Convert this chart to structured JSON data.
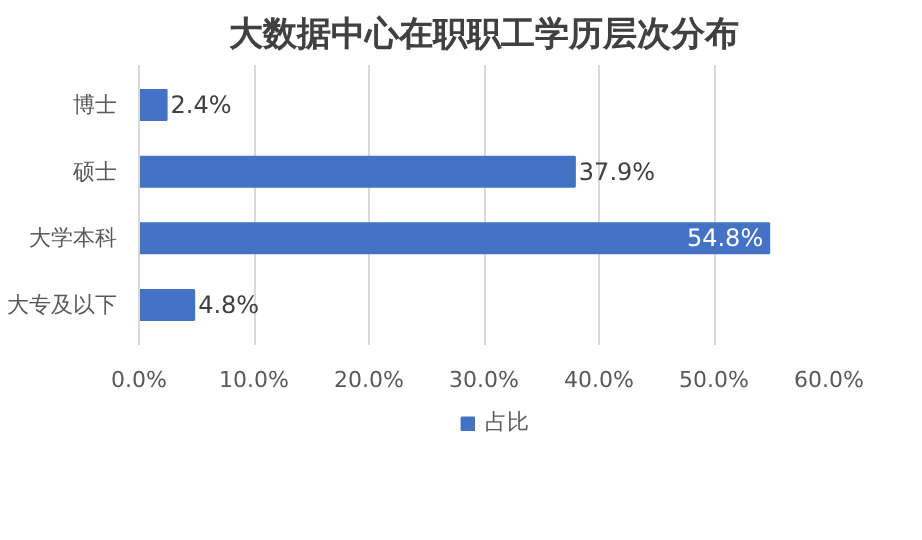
{
  "chart_data": {
    "type": "bar",
    "orientation": "horizontal",
    "title": "大数据中心在职职工学历层次分布",
    "categories": [
      "博士",
      "硕士",
      "大学本科",
      "大专及以下"
    ],
    "series": [
      {
        "name": "占比",
        "color": "#4472c4",
        "values": [
          2.4,
          37.9,
          54.8,
          4.8
        ]
      }
    ],
    "value_labels": [
      "2.4%",
      "37.9%",
      "54.8%",
      "4.8%"
    ],
    "xlim": [
      0,
      60
    ],
    "xticks": [
      {
        "value": 0,
        "label": "0.0%"
      },
      {
        "value": 10,
        "label": "10.0%"
      },
      {
        "value": 20,
        "label": "20.0%"
      },
      {
        "value": 30,
        "label": "30.0%"
      },
      {
        "value": 40,
        "label": "40.0%"
      },
      {
        "value": 50,
        "label": "50.0%"
      },
      {
        "value": 60,
        "label": "60.0%"
      }
    ],
    "grid": "x",
    "legend": "bottom"
  }
}
